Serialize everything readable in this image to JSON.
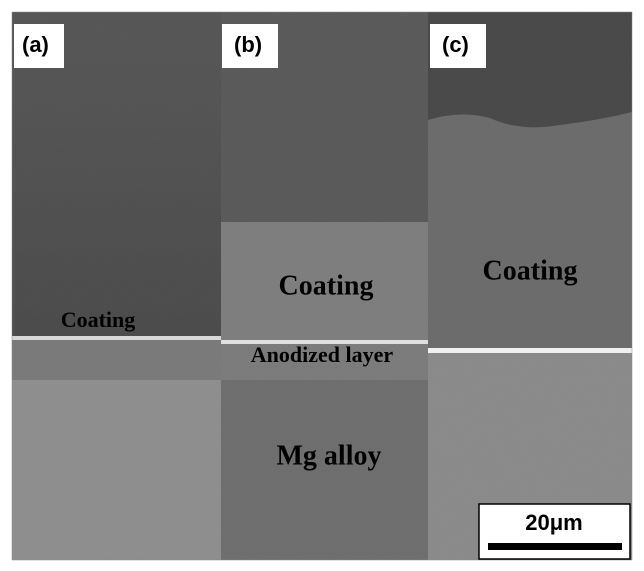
{
  "panels": [
    {
      "label": "(a)",
      "annotations": [
        "Coating"
      ]
    },
    {
      "label": "(b)",
      "annotations": [
        "Coating",
        "Anodized layer",
        "Mg alloy"
      ]
    },
    {
      "label": "(c)",
      "annotations": [
        "Coating"
      ]
    }
  ],
  "scale_bar": {
    "label": "20μm"
  }
}
